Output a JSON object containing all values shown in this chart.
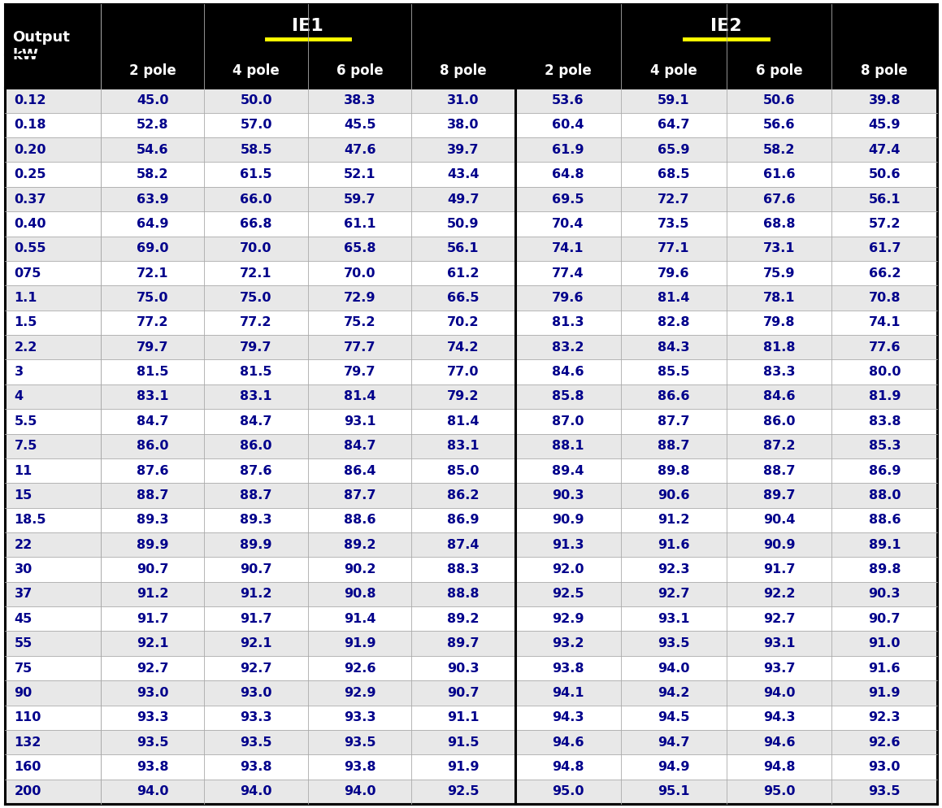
{
  "output_kw": [
    "0.12",
    "0.18",
    "0.20",
    "0.25",
    "0.37",
    "0.40",
    "0.55",
    "075",
    "1.1",
    "1.5",
    "2.2",
    "3",
    "4",
    "5.5",
    "7.5",
    "11",
    "15",
    "18.5",
    "22",
    "30",
    "37",
    "45",
    "55",
    "75",
    "90",
    "110",
    "132",
    "160",
    "200"
  ],
  "IE1": {
    "2pole": [
      45.0,
      52.8,
      54.6,
      58.2,
      63.9,
      64.9,
      69.0,
      72.1,
      75.0,
      77.2,
      79.7,
      81.5,
      83.1,
      84.7,
      86.0,
      87.6,
      88.7,
      89.3,
      89.9,
      90.7,
      91.2,
      91.7,
      92.1,
      92.7,
      93.0,
      93.3,
      93.5,
      93.8,
      94.0
    ],
    "4pole": [
      50.0,
      57.0,
      58.5,
      61.5,
      66.0,
      66.8,
      70.0,
      72.1,
      75.0,
      77.2,
      79.7,
      81.5,
      83.1,
      84.7,
      86.0,
      87.6,
      88.7,
      89.3,
      89.9,
      90.7,
      91.2,
      91.7,
      92.1,
      92.7,
      93.0,
      93.3,
      93.5,
      93.8,
      94.0
    ],
    "6pole": [
      38.3,
      45.5,
      47.6,
      52.1,
      59.7,
      61.1,
      65.8,
      70.0,
      72.9,
      75.2,
      77.7,
      79.7,
      81.4,
      93.1,
      84.7,
      86.4,
      87.7,
      88.6,
      89.2,
      90.2,
      90.8,
      91.4,
      91.9,
      92.6,
      92.9,
      93.3,
      93.5,
      93.8,
      94.0
    ],
    "8pole": [
      31.0,
      38.0,
      39.7,
      43.4,
      49.7,
      50.9,
      56.1,
      61.2,
      66.5,
      70.2,
      74.2,
      77.0,
      79.2,
      81.4,
      83.1,
      85.0,
      86.2,
      86.9,
      87.4,
      88.3,
      88.8,
      89.2,
      89.7,
      90.3,
      90.7,
      91.1,
      91.5,
      91.9,
      92.5
    ]
  },
  "IE2": {
    "2pole": [
      53.6,
      60.4,
      61.9,
      64.8,
      69.5,
      70.4,
      74.1,
      77.4,
      79.6,
      81.3,
      83.2,
      84.6,
      85.8,
      87.0,
      88.1,
      89.4,
      90.3,
      90.9,
      91.3,
      92.0,
      92.5,
      92.9,
      93.2,
      93.8,
      94.1,
      94.3,
      94.6,
      94.8,
      95.0
    ],
    "4pole": [
      59.1,
      64.7,
      65.9,
      68.5,
      72.7,
      73.5,
      77.1,
      79.6,
      81.4,
      82.8,
      84.3,
      85.5,
      86.6,
      87.7,
      88.7,
      89.8,
      90.6,
      91.2,
      91.6,
      92.3,
      92.7,
      93.1,
      93.5,
      94.0,
      94.2,
      94.5,
      94.7,
      94.9,
      95.1
    ],
    "6pole": [
      50.6,
      56.6,
      58.2,
      61.6,
      67.6,
      68.8,
      73.1,
      75.9,
      78.1,
      79.8,
      81.8,
      83.3,
      84.6,
      86.0,
      87.2,
      88.7,
      89.7,
      90.4,
      90.9,
      91.7,
      92.2,
      92.7,
      93.1,
      93.7,
      94.0,
      94.3,
      94.6,
      94.8,
      95.0
    ],
    "8pole": [
      39.8,
      45.9,
      47.4,
      50.6,
      56.1,
      57.2,
      61.7,
      66.2,
      70.8,
      74.1,
      77.6,
      80.0,
      81.9,
      83.8,
      85.3,
      86.9,
      88.0,
      88.6,
      89.1,
      89.8,
      90.3,
      90.7,
      91.0,
      91.6,
      91.9,
      92.3,
      92.6,
      93.0,
      93.5
    ]
  },
  "row_bg_odd": "#e8e8e8",
  "row_bg_even": "#ffffff",
  "cell_text_color": "#00008B",
  "header_bg": "#000000",
  "header_text": "#ffffff",
  "ie_underline_color": "#ffff00",
  "font_size_data": 11.5,
  "font_size_header": 12,
  "font_size_ie": 16,
  "font_size_output": 13
}
